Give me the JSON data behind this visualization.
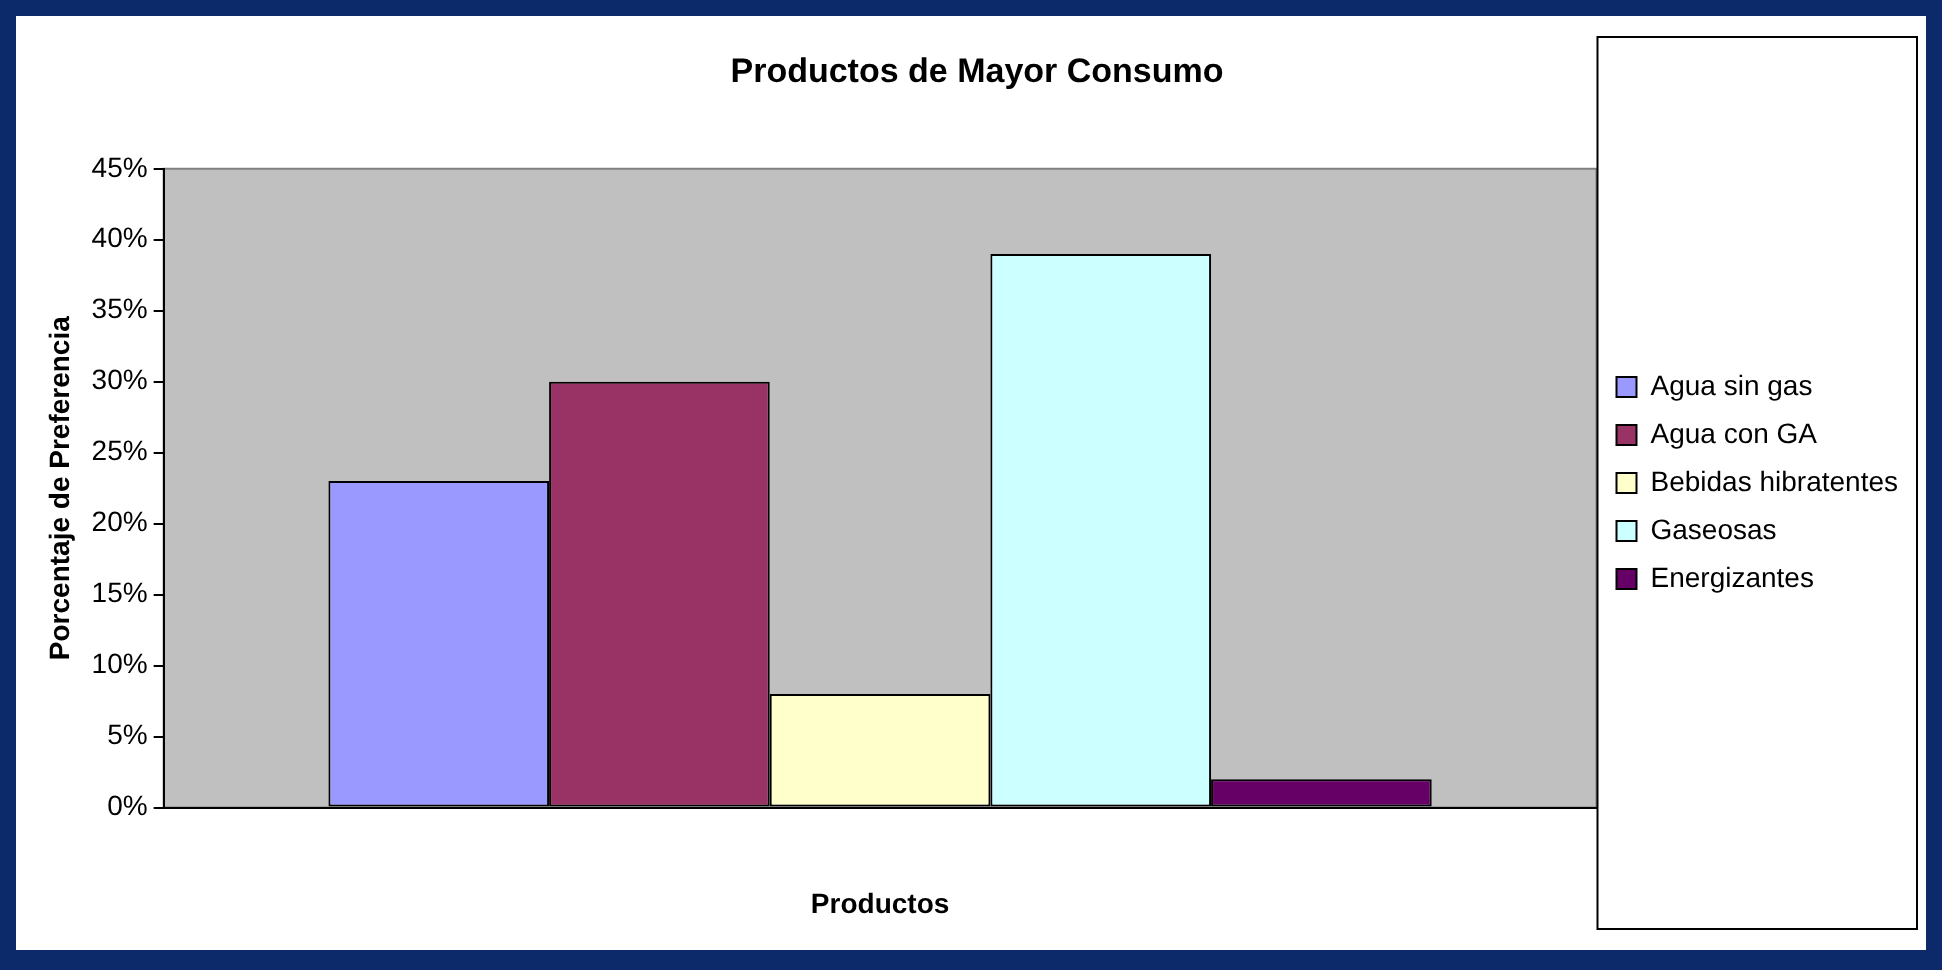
{
  "chart_data": {
    "type": "bar",
    "title": "Productos de Mayor Consumo",
    "xlabel": "Productos",
    "ylabel": "Porcentaje de Preferencia",
    "categories": [
      null
    ],
    "series": [
      {
        "name": "Agua sin gas",
        "color": "#9999ff",
        "values": [
          23
        ]
      },
      {
        "name": "Agua con GA",
        "color": "#993366",
        "values": [
          30
        ]
      },
      {
        "name": "Bebidas hibratentes",
        "color": "#ffffcc",
        "values": [
          8
        ]
      },
      {
        "name": "Gaseosas",
        "color": "#ccffff",
        "values": [
          39
        ]
      },
      {
        "name": "Energizantes",
        "color": "#660066",
        "values": [
          2
        ]
      }
    ],
    "ylim": [
      0,
      45
    ],
    "yticks": [
      {
        "value": 0,
        "label": "0%"
      },
      {
        "value": 5,
        "label": "5%"
      },
      {
        "value": 10,
        "label": "10%"
      },
      {
        "value": 15,
        "label": "15%"
      },
      {
        "value": 20,
        "label": "20%"
      },
      {
        "value": 25,
        "label": "25%"
      },
      {
        "value": 30,
        "label": "30%"
      },
      {
        "value": 35,
        "label": "35%"
      },
      {
        "value": 40,
        "label": "40%"
      },
      {
        "value": 45,
        "label": "45%"
      }
    ],
    "grid": false,
    "legend": "right"
  }
}
